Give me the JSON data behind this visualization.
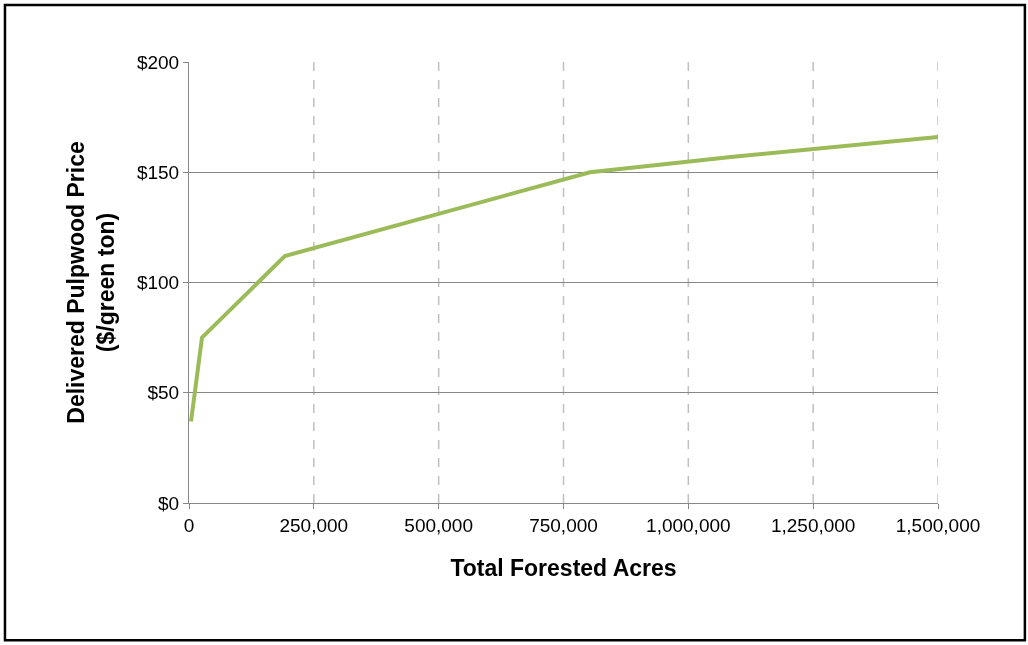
{
  "chart_data": {
    "type": "line",
    "xlabel": "Total Forested Acres",
    "ylabel": "Delivered Pulpwood Price\n($/green ton)",
    "x": [
      4000,
      26000,
      192000,
      803000,
      1090000,
      1500000
    ],
    "series": [
      {
        "color": "#9bbb59",
        "values": [
          37,
          75,
          112,
          150,
          157,
          166
        ]
      }
    ],
    "xlim": [
      0,
      1500000
    ],
    "xticks": [
      {
        "value": 0,
        "label": "0"
      },
      {
        "value": 250000,
        "label": "250,000"
      },
      {
        "value": 500000,
        "label": "500,000"
      },
      {
        "value": 750000,
        "label": "750,000"
      },
      {
        "value": 1000000,
        "label": "1,000,000"
      },
      {
        "value": 1250000,
        "label": "1,250,000"
      },
      {
        "value": 1500000,
        "label": "1,500,000"
      }
    ],
    "ylim": [
      0,
      200
    ],
    "yticks": [
      {
        "value": 0,
        "label": "$0"
      },
      {
        "value": 50,
        "label": "$50"
      },
      {
        "value": 100,
        "label": "$100"
      },
      {
        "value": 150,
        "label": "$150"
      },
      {
        "value": 200,
        "label": "$200"
      }
    ],
    "grid": true,
    "marker": "none",
    "line_style": "solid"
  }
}
